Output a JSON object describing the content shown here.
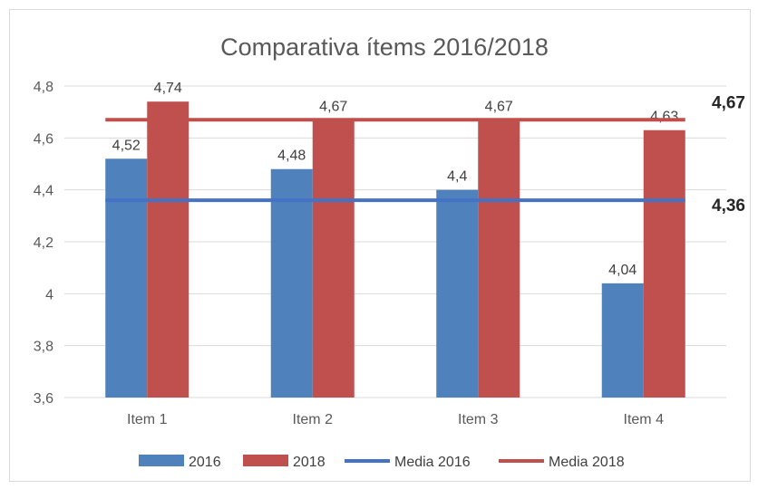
{
  "chart_data": {
    "type": "bar",
    "title": "Comparativa ítems 2016/2018",
    "categories": [
      "Item 1",
      "Item 2",
      "Item 3",
      "Item 4"
    ],
    "series": [
      {
        "name": "2016",
        "values": [
          4.52,
          4.48,
          4.4,
          4.04
        ],
        "labels": [
          "4,52",
          "4,48",
          "4,4",
          "4,04"
        ],
        "color": "#4f81bd"
      },
      {
        "name": "2018",
        "values": [
          4.74,
          4.67,
          4.67,
          4.63
        ],
        "labels": [
          "4,74",
          "4,67",
          "4,67",
          "4,63"
        ],
        "color": "#c0504d"
      }
    ],
    "lines": [
      {
        "name": "Media 2016",
        "value": 4.36,
        "label": "4,36",
        "color": "#4472c4"
      },
      {
        "name": "Media 2018",
        "value": 4.67,
        "label": "4,67",
        "color": "#c0504d"
      }
    ],
    "ylim": [
      3.6,
      4.8
    ],
    "yticks": [
      3.6,
      3.8,
      4.0,
      4.2,
      4.4,
      4.6,
      4.8
    ],
    "ytick_labels": [
      "3,6",
      "3,8",
      "4",
      "4,2",
      "4,4",
      "4,6",
      "4,8"
    ],
    "grid": true,
    "legend": "bottom",
    "legend_items": [
      "2016",
      "2018",
      "Media 2016",
      "Media 2018"
    ]
  }
}
